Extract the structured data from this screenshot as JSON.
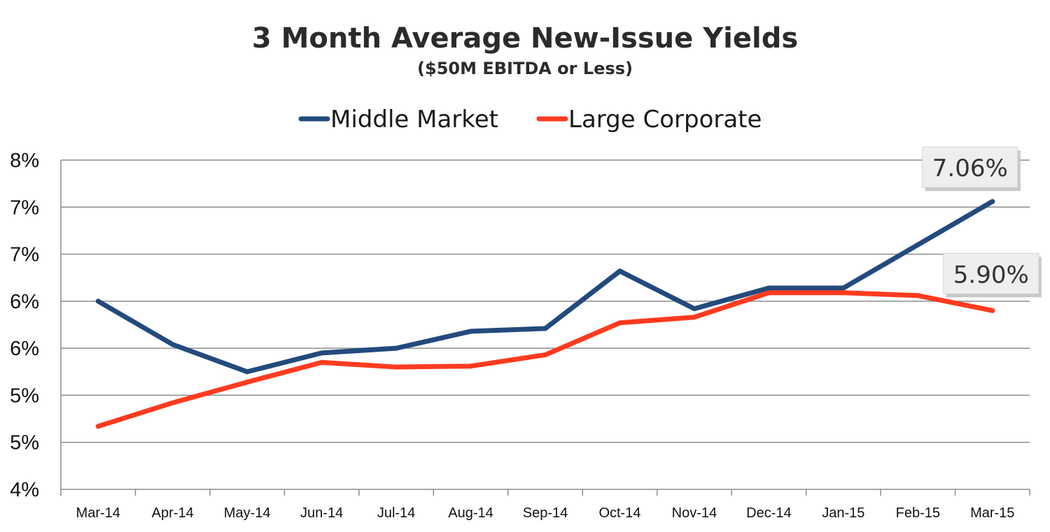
{
  "chart_data": {
    "type": "line",
    "title": "3 Month Average New-Issue Yields",
    "subtitle": "($50M EBITDA or Less)",
    "categories": [
      "Mar-14",
      "Apr-14",
      "May-14",
      "Jun-14",
      "Jul-14",
      "Aug-14",
      "Sep-14",
      "Oct-14",
      "Nov-14",
      "Dec-14",
      "Jan-15",
      "Feb-15",
      "Mar-15"
    ],
    "y_tick_labels": [
      "4%",
      "5%",
      "5%",
      "6%",
      "6%",
      "7%",
      "7%",
      "8%"
    ],
    "ylim": [
      4.0,
      7.5
    ],
    "grid": true,
    "legend_position": "top",
    "series": [
      {
        "name": "Middle Market",
        "color": "#234a7d",
        "values": [
          6.0,
          5.54,
          5.25,
          5.45,
          5.5,
          5.68,
          5.71,
          6.32,
          5.92,
          6.14,
          6.14,
          6.6,
          7.06
        ]
      },
      {
        "name": "Large Corporate",
        "color": "#ff3b1f",
        "values": [
          4.67,
          4.92,
          5.14,
          5.35,
          5.3,
          5.31,
          5.43,
          5.77,
          5.83,
          6.09,
          6.09,
          6.06,
          5.9
        ]
      }
    ],
    "annotations": [
      {
        "series": 0,
        "label": "7.06%"
      },
      {
        "series": 1,
        "label": "5.90%"
      }
    ]
  }
}
